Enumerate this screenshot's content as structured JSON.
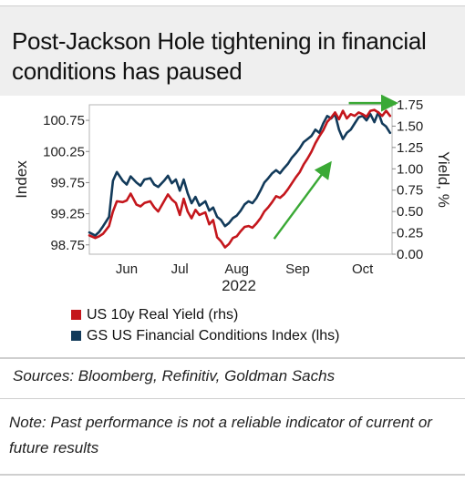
{
  "header": {
    "title": "Post-Jackson Hole tightening in financial conditions has paused"
  },
  "chart_data": {
    "type": "line",
    "year_label": "2022",
    "left_axis": {
      "label": "Index",
      "range": [
        98.6,
        101.0
      ],
      "ticks": [
        "100.75",
        "100.25",
        "99.75",
        "99.25",
        "98.75"
      ],
      "tick_values": [
        100.75,
        100.25,
        99.75,
        99.25,
        98.75
      ]
    },
    "right_axis": {
      "label": "Yield, %",
      "range": [
        0.0,
        1.75
      ],
      "ticks": [
        "1.75",
        "1.50",
        "1.25",
        "1.00",
        "0.75",
        "0.50",
        "0.25",
        "0.00"
      ],
      "tick_values": [
        1.75,
        1.5,
        1.25,
        1.0,
        0.75,
        0.5,
        0.25,
        0.0
      ]
    },
    "x_axis": {
      "range": [
        "2022-05-20",
        "2022-10-21"
      ],
      "tick_labels": [
        "Jun",
        "Jul",
        "Aug",
        "Sep",
        "Oct"
      ],
      "tick_dates": [
        "2022-06-08",
        "2022-07-05",
        "2022-08-03",
        "2022-09-03",
        "2022-10-06"
      ]
    },
    "series": [
      {
        "name": "US 10y Real Yield (rhs)",
        "color": "#c4161c",
        "axis": "right",
        "points": [
          [
            "2022-05-20",
            0.22
          ],
          [
            "2022-05-23",
            0.19
          ],
          [
            "2022-05-25",
            0.21
          ],
          [
            "2022-05-27",
            0.24
          ],
          [
            "2022-05-30",
            0.33
          ],
          [
            "2022-06-01",
            0.5
          ],
          [
            "2022-06-03",
            0.62
          ],
          [
            "2022-06-06",
            0.61
          ],
          [
            "2022-06-08",
            0.63
          ],
          [
            "2022-06-10",
            0.71
          ],
          [
            "2022-06-13",
            0.58
          ],
          [
            "2022-06-15",
            0.56
          ],
          [
            "2022-06-17",
            0.6
          ],
          [
            "2022-06-20",
            0.62
          ],
          [
            "2022-06-22",
            0.55
          ],
          [
            "2022-06-24",
            0.5
          ],
          [
            "2022-06-27",
            0.62
          ],
          [
            "2022-06-29",
            0.7
          ],
          [
            "2022-07-01",
            0.64
          ],
          [
            "2022-07-03",
            0.6
          ],
          [
            "2022-07-05",
            0.46
          ],
          [
            "2022-07-07",
            0.65
          ],
          [
            "2022-07-09",
            0.5
          ],
          [
            "2022-07-11",
            0.42
          ],
          [
            "2022-07-13",
            0.52
          ],
          [
            "2022-07-15",
            0.46
          ],
          [
            "2022-07-18",
            0.49
          ],
          [
            "2022-07-20",
            0.35
          ],
          [
            "2022-07-22",
            0.4
          ],
          [
            "2022-07-24",
            0.2
          ],
          [
            "2022-07-26",
            0.15
          ],
          [
            "2022-07-28",
            0.08
          ],
          [
            "2022-07-30",
            0.12
          ],
          [
            "2022-08-01",
            0.19
          ],
          [
            "2022-08-03",
            0.21
          ],
          [
            "2022-08-05",
            0.27
          ],
          [
            "2022-08-07",
            0.32
          ],
          [
            "2022-08-09",
            0.33
          ],
          [
            "2022-08-11",
            0.31
          ],
          [
            "2022-08-13",
            0.36
          ],
          [
            "2022-08-15",
            0.42
          ],
          [
            "2022-08-17",
            0.5
          ],
          [
            "2022-08-19",
            0.55
          ],
          [
            "2022-08-21",
            0.61
          ],
          [
            "2022-08-23",
            0.68
          ],
          [
            "2022-08-25",
            0.66
          ],
          [
            "2022-08-27",
            0.7
          ],
          [
            "2022-08-29",
            0.76
          ],
          [
            "2022-08-31",
            0.83
          ],
          [
            "2022-09-02",
            0.9
          ],
          [
            "2022-09-04",
            0.96
          ],
          [
            "2022-09-06",
            1.05
          ],
          [
            "2022-09-08",
            1.12
          ],
          [
            "2022-09-10",
            1.2
          ],
          [
            "2022-09-12",
            1.3
          ],
          [
            "2022-09-14",
            1.38
          ],
          [
            "2022-09-16",
            1.45
          ],
          [
            "2022-09-18",
            1.55
          ],
          [
            "2022-09-20",
            1.6
          ],
          [
            "2022-09-22",
            1.66
          ],
          [
            "2022-09-24",
            1.58
          ],
          [
            "2022-09-26",
            1.68
          ],
          [
            "2022-09-28",
            1.59
          ],
          [
            "2022-09-30",
            1.64
          ],
          [
            "2022-10-02",
            1.62
          ],
          [
            "2022-10-04",
            1.66
          ],
          [
            "2022-10-06",
            1.64
          ],
          [
            "2022-10-08",
            1.61
          ],
          [
            "2022-10-10",
            1.68
          ],
          [
            "2022-10-12",
            1.69
          ],
          [
            "2022-10-14",
            1.66
          ],
          [
            "2022-10-16",
            1.62
          ],
          [
            "2022-10-18",
            1.68
          ],
          [
            "2022-10-20",
            1.62
          ]
        ]
      },
      {
        "name": "GS US Financial Conditions Index (lhs)",
        "color": "#123a5a",
        "axis": "left",
        "points": [
          [
            "2022-05-20",
            98.95
          ],
          [
            "2022-05-23",
            98.9
          ],
          [
            "2022-05-25",
            98.96
          ],
          [
            "2022-05-27",
            99.05
          ],
          [
            "2022-05-30",
            99.2
          ],
          [
            "2022-06-01",
            99.78
          ],
          [
            "2022-06-03",
            99.92
          ],
          [
            "2022-06-06",
            99.78
          ],
          [
            "2022-06-08",
            99.72
          ],
          [
            "2022-06-10",
            99.85
          ],
          [
            "2022-06-13",
            99.75
          ],
          [
            "2022-06-15",
            99.7
          ],
          [
            "2022-06-17",
            99.8
          ],
          [
            "2022-06-20",
            99.82
          ],
          [
            "2022-06-22",
            99.72
          ],
          [
            "2022-06-24",
            99.68
          ],
          [
            "2022-06-27",
            99.78
          ],
          [
            "2022-06-29",
            99.86
          ],
          [
            "2022-07-01",
            99.74
          ],
          [
            "2022-07-03",
            99.8
          ],
          [
            "2022-07-05",
            99.62
          ],
          [
            "2022-07-07",
            99.8
          ],
          [
            "2022-07-09",
            99.58
          ],
          [
            "2022-07-11",
            99.42
          ],
          [
            "2022-07-13",
            99.52
          ],
          [
            "2022-07-15",
            99.38
          ],
          [
            "2022-07-18",
            99.45
          ],
          [
            "2022-07-20",
            99.3
          ],
          [
            "2022-07-22",
            99.35
          ],
          [
            "2022-07-24",
            99.2
          ],
          [
            "2022-07-26",
            99.15
          ],
          [
            "2022-07-28",
            99.05
          ],
          [
            "2022-07-30",
            99.1
          ],
          [
            "2022-08-01",
            99.18
          ],
          [
            "2022-08-03",
            99.22
          ],
          [
            "2022-08-05",
            99.3
          ],
          [
            "2022-08-07",
            99.4
          ],
          [
            "2022-08-09",
            99.45
          ],
          [
            "2022-08-11",
            99.42
          ],
          [
            "2022-08-13",
            99.5
          ],
          [
            "2022-08-15",
            99.62
          ],
          [
            "2022-08-17",
            99.75
          ],
          [
            "2022-08-19",
            99.82
          ],
          [
            "2022-08-21",
            99.9
          ],
          [
            "2022-08-23",
            99.95
          ],
          [
            "2022-08-25",
            99.9
          ],
          [
            "2022-08-27",
            99.98
          ],
          [
            "2022-08-29",
            100.05
          ],
          [
            "2022-08-31",
            100.15
          ],
          [
            "2022-09-02",
            100.22
          ],
          [
            "2022-09-04",
            100.3
          ],
          [
            "2022-09-06",
            100.4
          ],
          [
            "2022-09-08",
            100.45
          ],
          [
            "2022-09-10",
            100.5
          ],
          [
            "2022-09-12",
            100.6
          ],
          [
            "2022-09-14",
            100.55
          ],
          [
            "2022-09-16",
            100.7
          ],
          [
            "2022-09-18",
            100.82
          ],
          [
            "2022-09-20",
            100.78
          ],
          [
            "2022-09-22",
            100.85
          ],
          [
            "2022-09-24",
            100.6
          ],
          [
            "2022-09-26",
            100.45
          ],
          [
            "2022-09-28",
            100.55
          ],
          [
            "2022-09-30",
            100.6
          ],
          [
            "2022-10-02",
            100.7
          ],
          [
            "2022-10-04",
            100.8
          ],
          [
            "2022-10-06",
            100.82
          ],
          [
            "2022-10-08",
            100.75
          ],
          [
            "2022-10-10",
            100.85
          ],
          [
            "2022-10-12",
            100.72
          ],
          [
            "2022-10-14",
            100.88
          ],
          [
            "2022-10-16",
            100.7
          ],
          [
            "2022-10-18",
            100.65
          ],
          [
            "2022-10-20",
            100.55
          ]
        ]
      }
    ],
    "annotations": [
      {
        "type": "arrow",
        "color": "#3aa935",
        "from": [
          "2022-08-22",
          0.18
        ],
        "to": [
          "2022-09-19",
          1.05
        ],
        "axis": "right"
      },
      {
        "type": "arrow",
        "color": "#3aa935",
        "from": [
          "2022-09-29",
          1.77
        ],
        "to": [
          "2022-10-22",
          1.77
        ],
        "axis": "right"
      }
    ]
  },
  "footer": {
    "sources": "Sources: Bloomberg, Refinitiv, Goldman Sachs",
    "note": "Note: Past performance is not a reliable indicator of current or future results"
  }
}
